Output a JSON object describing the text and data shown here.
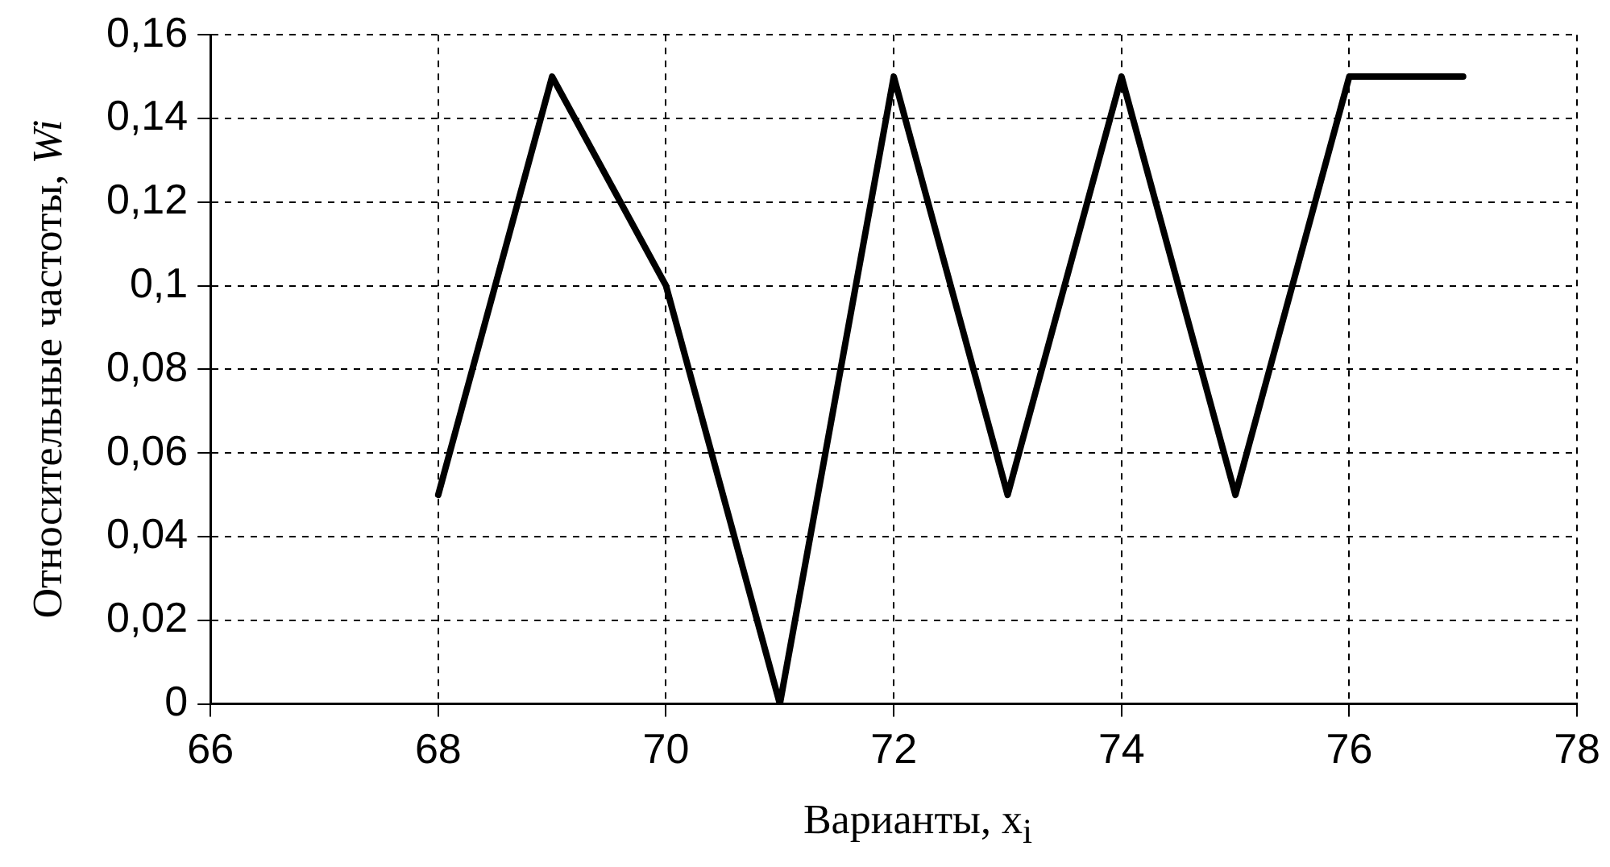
{
  "chart_data": {
    "type": "line",
    "xlabel": "Варианты, x$_{i}$",
    "ylabel": "Относительные частоты, Wi",
    "x": [
      68,
      69,
      70,
      71,
      72,
      73,
      74,
      75,
      76,
      77
    ],
    "series": [
      {
        "color": "#000000",
        "values": [
          0.05,
          0.15,
          0.1,
          0,
          0.15,
          0.05,
          0.15,
          0.05,
          0.15,
          0.15
        ]
      }
    ],
    "xlim": [
      66,
      78
    ],
    "xticks": [
      66,
      68,
      70,
      72,
      74,
      76,
      78
    ],
    "ylim": [
      0,
      0.16
    ],
    "yticks": [
      0,
      {
        "value": 0.02,
        "label": "0,02"
      },
      {
        "value": 0.04,
        "label": "0,04"
      },
      {
        "value": 0.06,
        "label": "0,06"
      },
      {
        "value": 0.08,
        "label": "0,08"
      },
      {
        "value": 0.1,
        "label": "0,1"
      },
      {
        "value": 0.12,
        "label": "0,12"
      },
      {
        "value": 0.14,
        "label": "0,14"
      },
      {
        "value": 0.16,
        "label": "0,16"
      }
    ],
    "grid": true,
    "legend": false,
    "marker": "none",
    "line_style": "solid"
  }
}
